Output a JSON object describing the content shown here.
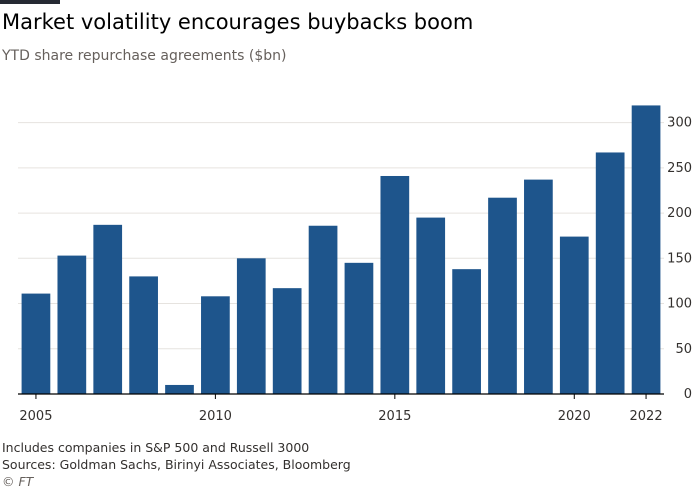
{
  "header": {
    "title": "Market volatility encourages buybacks boom",
    "subtitle": "YTD share repurchase agreements ($bn)"
  },
  "footer": {
    "note": "Includes companies in S&P 500 and Russell 3000",
    "sources": "Sources: Goldman Sachs, Birinyi Associates, Bloomberg",
    "credit": "© FT"
  },
  "colors": {
    "bar": "#1E558C",
    "grid": "#E6E3DF",
    "baseline": "#000000",
    "tick_text": "#33302E"
  },
  "chart_data": {
    "type": "bar",
    "title": "Market volatility encourages buybacks boom",
    "subtitle": "YTD share repurchase agreements ($bn)",
    "xlabel": "",
    "ylabel": "",
    "categories": [
      "2005",
      "2006",
      "2007",
      "2008",
      "2009",
      "2010",
      "2011",
      "2012",
      "2013",
      "2014",
      "2015",
      "2016",
      "2017",
      "2018",
      "2019",
      "2020",
      "2021",
      "2022"
    ],
    "values": [
      111,
      153,
      187,
      130,
      10,
      108,
      150,
      117,
      186,
      145,
      241,
      195,
      138,
      217,
      237,
      174,
      267,
      319
    ],
    "x_tick_labels": [
      "2005",
      "2010",
      "2015",
      "2020",
      "2022"
    ],
    "y_ticks": [
      0,
      50,
      100,
      150,
      200,
      250,
      300
    ],
    "ylim": [
      0,
      300
    ],
    "y_axis_side": "right",
    "grid": true,
    "legend": "none"
  }
}
